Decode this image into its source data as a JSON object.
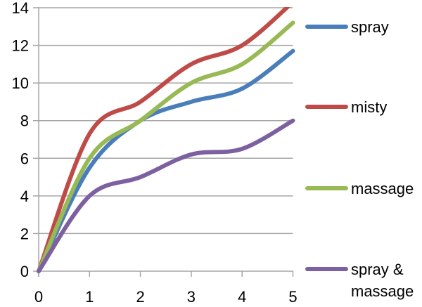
{
  "chart_data": {
    "type": "line",
    "title": "",
    "xlabel": "",
    "ylabel": "",
    "x": [
      0,
      1,
      2,
      3,
      4,
      5
    ],
    "xlim": [
      0,
      5
    ],
    "ylim": [
      0,
      14
    ],
    "xticks": [
      "0",
      "1",
      "2",
      "3",
      "4",
      "5"
    ],
    "yticks": [
      "0",
      "2",
      "4",
      "6",
      "8",
      "10",
      "12",
      "14"
    ],
    "grid": "horizontal",
    "legend_position": "right",
    "series": [
      {
        "name": "spray",
        "color": "#4a7ebb",
        "values": [
          0,
          5.5,
          8,
          9,
          9.7,
          11.7
        ]
      },
      {
        "name": "misty",
        "color": "#be4b48",
        "values": [
          0,
          7.3,
          9,
          11,
          12,
          14.3
        ]
      },
      {
        "name": "massage",
        "color": "#98b954",
        "values": [
          0,
          6,
          8,
          10,
          11,
          13.2
        ]
      },
      {
        "name": "spray & massage",
        "color": "#7d60a0",
        "values": [
          0,
          4,
          5,
          6.2,
          6.5,
          8
        ]
      }
    ]
  }
}
